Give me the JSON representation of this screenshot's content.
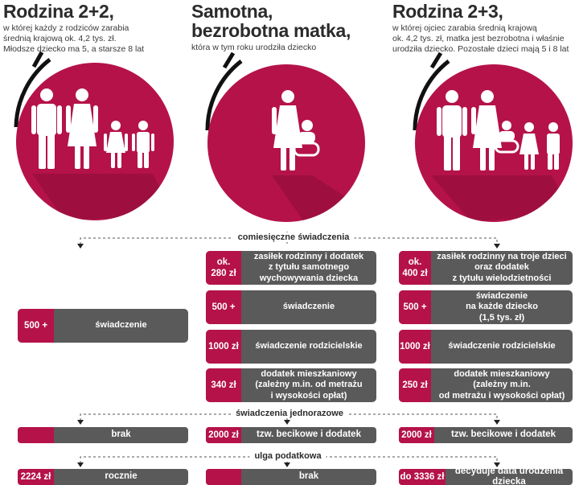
{
  "columns": [
    {
      "title": "Rodzina 2+2,",
      "sub": [
        "w której każdy z rodziców zarabia",
        "średnią krajową ok. 4,2 tys. zł.",
        "Młodsze dziecko ma 5, a starsze 8 lat"
      ]
    },
    {
      "title": [
        "Samotna,",
        "bezrobotna matka,"
      ],
      "sub": [
        "która w tym roku urodziła dziecko"
      ]
    },
    {
      "title": "Rodzina 2+3,",
      "sub": [
        "w której ojciec zarabia średnią krajową",
        "ok. 4,2 tys. zł, matka jest bezrobotna i właśnie",
        "urodziła dziecko. Pozostałe dzieci mają 5 i 8 lat"
      ]
    }
  ],
  "sections": {
    "monthly": "comiesięczne świadczenia",
    "onetime": "świadczenia jednorazowe",
    "tax": "ulga podatkowa"
  },
  "rows": {
    "c1_500": {
      "amt": "500 +",
      "desc": "świadczenie"
    },
    "c1_onetime": {
      "amt": "",
      "desc": "brak"
    },
    "c1_tax": {
      "amt": "2224 zł",
      "desc": "rocznie"
    },
    "c2_280": {
      "amt": [
        "ok.",
        "280 zł"
      ],
      "desc": [
        "zasiłek rodzinny i  dodatek",
        "z tytułu samotnego",
        "wychowywania dziecka"
      ]
    },
    "c2_500": {
      "amt": "500 +",
      "desc": "świadczenie"
    },
    "c2_1000": {
      "amt": "1000 zł",
      "desc": "świadczenie rodzicielskie"
    },
    "c2_340": {
      "amt": "340 zł",
      "desc": [
        "dodatek mieszkaniowy",
        "(zależny m.in. od metrażu",
        "i wysokości opłat)"
      ]
    },
    "c2_onetime": {
      "amt": "2000 zł",
      "desc": "tzw. becikowe i dodatek"
    },
    "c2_tax": {
      "amt": "",
      "desc": "brak"
    },
    "c3_400": {
      "amt": [
        "ok.",
        "400 zł"
      ],
      "desc": [
        "zasiłek rodzinny na troje dzieci",
        "oraz dodatek",
        "z tytułu wielodzietności"
      ]
    },
    "c3_500": {
      "amt": "500 +",
      "desc": [
        "świadczenie",
        "na każde dziecko",
        "(1,5 tys. zł)"
      ]
    },
    "c3_1000": {
      "amt": "1000 zł",
      "desc": "świadczenie rodzicielskie"
    },
    "c3_250": {
      "amt": "250 zł",
      "desc": [
        "dodatek mieszkaniowy",
        "(zależny m.in.",
        "od metrażu i wysokości opłat)"
      ]
    },
    "c3_onetime": {
      "amt": "2000 zł",
      "desc": "tzw. becikowe i dodatek"
    },
    "c3_tax": {
      "amt": "do 3336 zł",
      "desc": "decyduje data urodzenia dziecka"
    }
  },
  "icons": {
    "c1": "family-two-adults-two-children-icon",
    "c2": "mother-with-baby-icon",
    "c3": "family-two-adults-three-children-icon"
  },
  "colors": {
    "accent": "#b5124a",
    "bar": "#5a5a5a",
    "text": "#2b2b2b"
  }
}
